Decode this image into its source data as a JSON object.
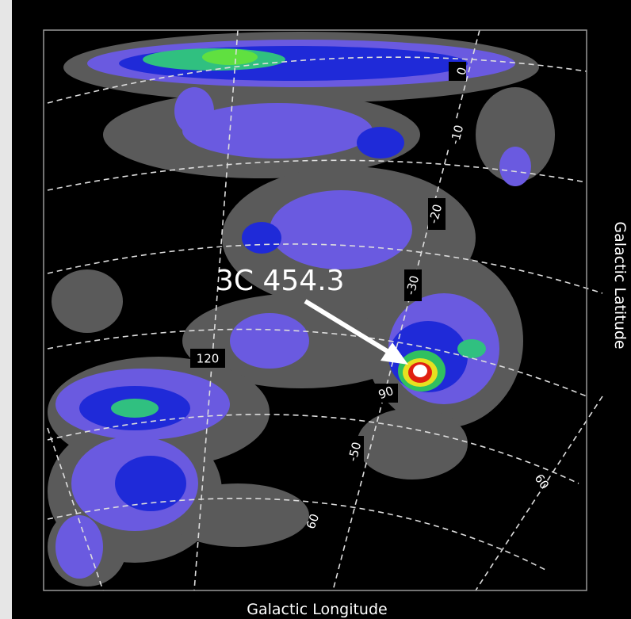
{
  "source_label": "3C 454.3",
  "x_axis_label": "Galactic Longitude",
  "y_axis_label": "Galactic Latitude",
  "grid_labels": [
    "0",
    "-10",
    "-20",
    "-30",
    "-50",
    "60",
    "120",
    "90",
    "60"
  ]
}
